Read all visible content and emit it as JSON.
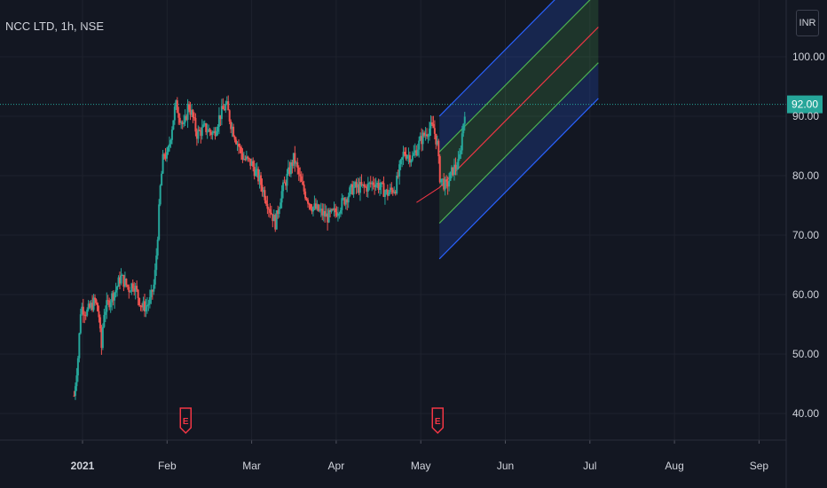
{
  "header": {
    "symbol_line": "NCC LTD, 1h, NSE",
    "currency": "INR"
  },
  "colors": {
    "background": "#131722",
    "up": "#26a69a",
    "down": "#ef5350",
    "current_price_line": "#26a69a",
    "channel_blue": "#2962ff",
    "channel_green": "#4caf50",
    "channel_red": "#f23645",
    "earnings_marker": "#f23645"
  },
  "chart_data": {
    "type": "candlestick",
    "title": "NCC LTD, 1h, NSE",
    "ylabel": "",
    "ylim": [
      33,
      106
    ],
    "y_ticks": [
      "100.00",
      "90.00",
      "80.00",
      "70.00",
      "60.00",
      "50.00",
      "40.00"
    ],
    "y_tick_values": [
      100,
      90,
      80,
      70,
      60,
      50,
      40
    ],
    "x_ticks": [
      {
        "label": "2021",
        "month": 0,
        "bold": true
      },
      {
        "label": "Feb",
        "month": 1
      },
      {
        "label": "Mar",
        "month": 2
      },
      {
        "label": "Apr",
        "month": 3
      },
      {
        "label": "May",
        "month": 4
      },
      {
        "label": "Jun",
        "month": 5
      },
      {
        "label": "Jul",
        "month": 6
      },
      {
        "label": "Aug",
        "month": 7
      },
      {
        "label": "Sep",
        "month": 8
      }
    ],
    "current_price": {
      "value": 92.0,
      "label": "92.00"
    },
    "price_path": [
      [
        -0.1,
        43
      ],
      [
        -0.05,
        50
      ],
      [
        -0.02,
        58
      ],
      [
        0.05,
        57
      ],
      [
        0.1,
        58
      ],
      [
        0.15,
        59
      ],
      [
        0.2,
        56
      ],
      [
        0.22,
        50
      ],
      [
        0.25,
        57
      ],
      [
        0.32,
        59
      ],
      [
        0.4,
        61
      ],
      [
        0.45,
        63
      ],
      [
        0.5,
        62
      ],
      [
        0.55,
        61
      ],
      [
        0.6,
        62
      ],
      [
        0.65,
        60
      ],
      [
        0.7,
        58
      ],
      [
        0.75,
        58
      ],
      [
        0.8,
        59
      ],
      [
        0.85,
        62
      ],
      [
        0.88,
        68
      ],
      [
        0.92,
        78
      ],
      [
        0.96,
        84
      ],
      [
        1.0,
        83
      ],
      [
        1.1,
        92
      ],
      [
        1.2,
        88
      ],
      [
        1.25,
        92
      ],
      [
        1.3,
        90
      ],
      [
        1.35,
        87
      ],
      [
        1.45,
        88
      ],
      [
        1.55,
        87
      ],
      [
        1.62,
        90
      ],
      [
        1.7,
        92
      ],
      [
        1.75,
        89
      ],
      [
        1.82,
        86
      ],
      [
        1.9,
        83
      ],
      [
        2.0,
        82
      ],
      [
        2.1,
        79
      ],
      [
        2.2,
        75
      ],
      [
        2.28,
        72
      ],
      [
        2.35,
        77
      ],
      [
        2.45,
        81
      ],
      [
        2.5,
        83
      ],
      [
        2.6,
        78
      ],
      [
        2.7,
        75
      ],
      [
        2.8,
        74
      ],
      [
        2.9,
        73
      ],
      [
        3.0,
        74
      ],
      [
        3.1,
        76
      ],
      [
        3.2,
        78
      ],
      [
        3.35,
        78
      ],
      [
        3.45,
        79
      ],
      [
        3.6,
        77
      ],
      [
        3.7,
        78
      ],
      [
        3.8,
        84
      ],
      [
        3.9,
        83
      ],
      [
        4.0,
        86
      ],
      [
        4.1,
        88
      ],
      [
        4.15,
        88
      ],
      [
        4.2,
        85
      ],
      [
        4.22,
        80
      ],
      [
        4.3,
        78
      ],
      [
        4.38,
        81
      ],
      [
        4.45,
        82
      ],
      [
        4.52,
        91
      ]
    ],
    "candle_count": 300,
    "channel": {
      "start": {
        "month": 4.22,
        "price": 78
      },
      "end": {
        "month": 6.1,
        "price": 105
      },
      "bands": [
        -12,
        -6,
        0,
        6,
        12
      ]
    },
    "earnings_markers": [
      {
        "month": 1.22,
        "label": "E"
      },
      {
        "month": 4.2,
        "label": "E"
      }
    ]
  }
}
